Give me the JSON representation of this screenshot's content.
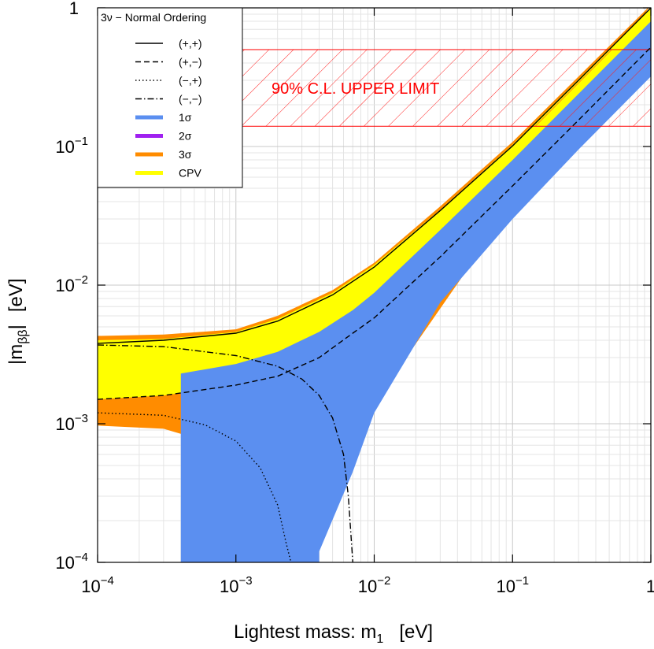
{
  "chart_data": {
    "type": "area",
    "title": "",
    "xlabel": "Lightest mass:    m",
    "xlabel_sub": "1",
    "xlabel_unit": "[eV]",
    "ylabel": "|m",
    "ylabel_sub": "ββ",
    "ylabel_end": "|",
    "ylabel_unit": "[eV]",
    "xscale": "log",
    "yscale": "log",
    "xlim": [
      0.0001,
      1
    ],
    "ylim": [
      0.0001,
      1
    ],
    "grid": true,
    "legend_position": "top-left",
    "x_ticks": [
      {
        "value": 0.0001,
        "base": "10",
        "exp": "−4"
      },
      {
        "value": 0.001,
        "base": "10",
        "exp": "−3"
      },
      {
        "value": 0.01,
        "base": "10",
        "exp": "−2"
      },
      {
        "value": 0.1,
        "base": "10",
        "exp": "−1"
      },
      {
        "value": 1,
        "base": "1",
        "exp": ""
      }
    ],
    "y_ticks": [
      {
        "value": 0.0001,
        "base": "10",
        "exp": "−4"
      },
      {
        "value": 0.001,
        "base": "10",
        "exp": "−3"
      },
      {
        "value": 0.01,
        "base": "10",
        "exp": "−2"
      },
      {
        "value": 0.1,
        "base": "10",
        "exp": "−1"
      },
      {
        "value": 1,
        "base": "1",
        "exp": ""
      }
    ],
    "legend": {
      "title": "3ν − Normal Ordering",
      "entries": [
        {
          "label": "(+,+)",
          "style": "solid",
          "color": "#000000"
        },
        {
          "label": "(+,−)",
          "style": "dashed",
          "color": "#000000"
        },
        {
          "label": "(−,+)",
          "style": "dotted",
          "color": "#000000"
        },
        {
          "label": "(−,−)",
          "style": "dashdot",
          "color": "#000000"
        },
        {
          "label": "1σ",
          "style": "band",
          "color": "#5b8ff0"
        },
        {
          "label": "2σ",
          "style": "band",
          "color": "#a020f0"
        },
        {
          "label": "3σ",
          "style": "band",
          "color": "#ff8c00"
        },
        {
          "label": "CPV",
          "style": "band",
          "color": "#ffff00"
        }
      ]
    },
    "annotation": {
      "text": "90% C.L. UPPER LIMIT",
      "y_range": [
        0.14,
        0.5
      ],
      "color": "#ff0000"
    },
    "series": [
      {
        "name": "(+,+)",
        "style": "solid",
        "x": [
          0.0001,
          0.0003,
          0.001,
          0.002,
          0.005,
          0.01,
          0.03,
          0.1,
          0.3,
          1
        ],
        "y": [
          0.0038,
          0.004,
          0.0045,
          0.0055,
          0.0085,
          0.0135,
          0.0345,
          0.101,
          0.3,
          1.0
        ]
      },
      {
        "name": "(+,−)",
        "style": "dashed",
        "x": [
          0.0001,
          0.0003,
          0.001,
          0.002,
          0.004,
          0.007,
          0.01,
          0.03,
          0.1,
          0.3,
          1
        ],
        "y": [
          0.0015,
          0.0016,
          0.0019,
          0.0022,
          0.003,
          0.0045,
          0.0058,
          0.016,
          0.052,
          0.155,
          0.52
        ]
      },
      {
        "name": "(−,+)",
        "style": "dotted",
        "x": [
          0.0001,
          0.0003,
          0.0006,
          0.001,
          0.0015,
          0.002,
          0.0023,
          0.0025
        ],
        "y": [
          0.0012,
          0.00115,
          0.00098,
          0.00075,
          0.00048,
          0.00026,
          0.00014,
          0.0001
        ]
      },
      {
        "name": "(−,−)",
        "style": "dashdot",
        "x": [
          0.0001,
          0.0003,
          0.001,
          0.002,
          0.003,
          0.004,
          0.005,
          0.006,
          0.0065,
          0.007
        ],
        "y": [
          0.0037,
          0.0036,
          0.0031,
          0.0026,
          0.0021,
          0.0016,
          0.0011,
          0.0006,
          0.0003,
          0.0001
        ]
      }
    ],
    "bands": [
      {
        "name": "3σ",
        "color": "#ff8c00",
        "upper": {
          "x": [
            0.0001,
            0.0003,
            0.001,
            0.002,
            0.005,
            0.01,
            0.03,
            0.1,
            0.3,
            1
          ],
          "y": [
            0.0043,
            0.0044,
            0.0048,
            0.006,
            0.0092,
            0.0145,
            0.037,
            0.108,
            0.32,
            1.05
          ]
        },
        "lower": {
          "x": [
            0.0001,
            0.0003,
            0.0006,
            0.001,
            0.0014,
            0.0016
          ],
          "y": [
            0.00097,
            0.00092,
            0.00075,
            0.0005,
            0.00022,
            0.0001
          ]
        }
      },
      {
        "name": "CPV",
        "color": "#ffff00",
        "upper": {
          "x": [
            0.0001,
            0.0003,
            0.001,
            0.002,
            0.005,
            0.01,
            0.03,
            0.1,
            0.3,
            1
          ],
          "y": [
            0.004,
            0.0041,
            0.0046,
            0.0057,
            0.0088,
            0.014,
            0.035,
            0.103,
            0.305,
            1.0
          ]
        },
        "lower": {
          "x": [
            0.0001,
            0.0003,
            0.001,
            0.002,
            0.004,
            0.007,
            0.01,
            0.03,
            0.1,
            0.3,
            1
          ],
          "y": [
            0.0015,
            0.0016,
            0.0019,
            0.0022,
            0.0029,
            0.0043,
            0.0055,
            0.015,
            0.047,
            0.14,
            0.46
          ]
        }
      },
      {
        "name": "1σ",
        "color": "#5b8ff0",
        "upper": {
          "x": [
            0.0004,
            0.001,
            0.002,
            0.004,
            0.007,
            0.01,
            0.03,
            0.1,
            0.3,
            1
          ],
          "y": [
            0.0023,
            0.0027,
            0.0033,
            0.0046,
            0.0066,
            0.0088,
            0.025,
            0.08,
            0.24,
            0.8
          ]
        },
        "lower": {
          "x": [
            0.004,
            0.007,
            0.01,
            0.03,
            0.1,
            0.3,
            1
          ],
          "y": [
            0.00012,
            0.00045,
            0.0012,
            0.0075,
            0.03,
            0.095,
            0.32
          ]
        }
      }
    ]
  }
}
